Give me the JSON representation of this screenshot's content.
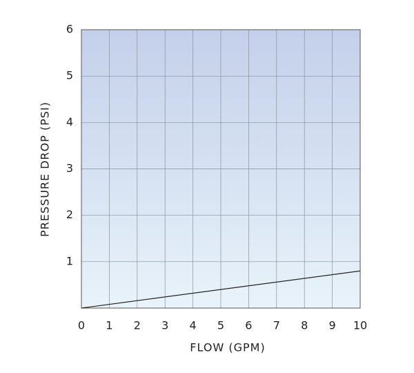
{
  "chart_data": {
    "type": "line",
    "x_label": "FLOW (GPM)",
    "y_label": "PRESSURE DROP (PSI)",
    "x": [
      0,
      10
    ],
    "values": [
      0,
      0.8
    ],
    "color": "#222222",
    "xlim": [
      0,
      10
    ],
    "xticks": [
      0,
      1,
      2,
      3,
      4,
      5,
      6,
      7,
      8,
      9,
      10
    ],
    "ylim": [
      0,
      6
    ],
    "yticks": [
      1,
      2,
      3,
      4,
      5,
      6
    ],
    "grid": true
  }
}
